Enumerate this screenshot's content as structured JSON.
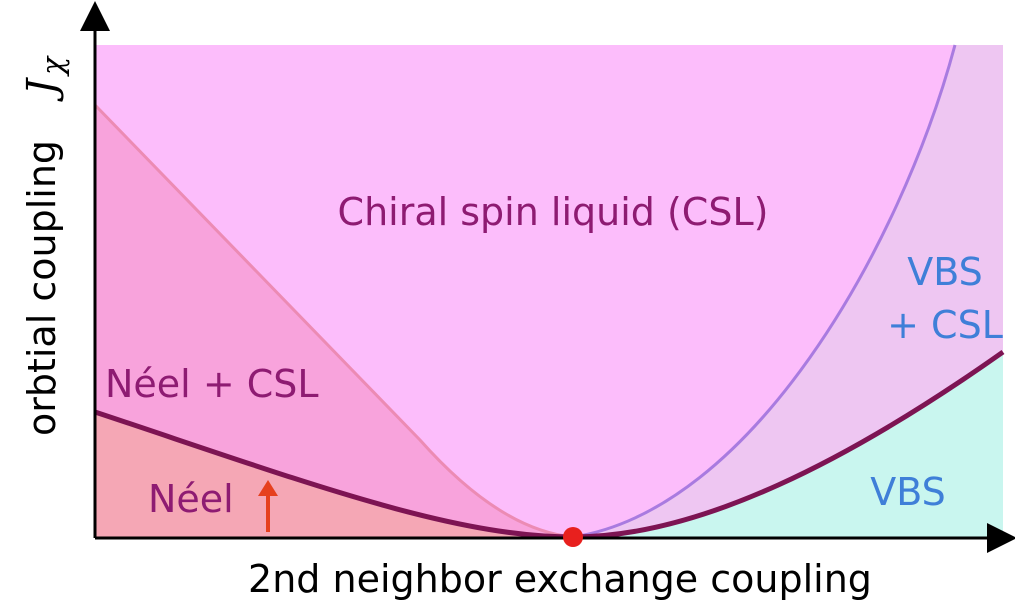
{
  "phases": {
    "csl": "Chiral spin liquid (CSL)",
    "vbs_csl_line1": "VBS",
    "vbs_csl_line2": "+ CSL",
    "neel_csl": "Néel + CSL",
    "neel": "Néel",
    "vbs": "VBS"
  },
  "axes": {
    "x_label": "2nd neighbor exchange coupling",
    "y_label": "orbtial coupling",
    "y_symbol": "J",
    "y_symbol_sub": "χ"
  }
}
